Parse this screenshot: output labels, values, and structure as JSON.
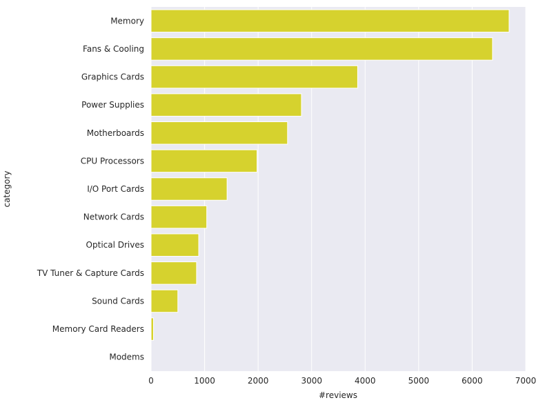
{
  "chart_data": {
    "type": "bar",
    "orientation": "horizontal",
    "categories": [
      "Memory",
      "Fans & Cooling",
      "Graphics Cards",
      "Power Supplies",
      "Motherboards",
      "CPU Processors",
      "I/O Port Cards",
      "Network Cards",
      "Optical Drives",
      "TV Tuner & Capture Cards",
      "Sound Cards",
      "Memory Card Readers",
      "Modems"
    ],
    "values": [
      6690,
      6380,
      3860,
      2810,
      2550,
      1980,
      1420,
      1040,
      890,
      850,
      500,
      45,
      0
    ],
    "xlabel": "#reviews",
    "ylabel": "category",
    "xlim": [
      0,
      7000
    ],
    "xticks": [
      "0",
      "1000",
      "2000",
      "3000",
      "4000",
      "5000",
      "6000",
      "7000"
    ],
    "grid": true,
    "colors": {
      "bar": "#d6d22e",
      "plot_background": "#eaeaf2",
      "grid": "#ffffff"
    }
  }
}
